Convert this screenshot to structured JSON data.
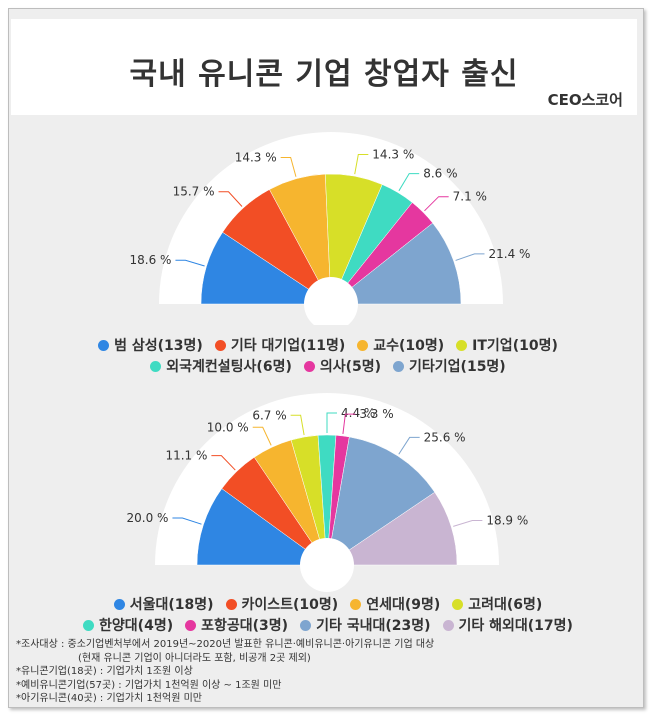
{
  "header": {
    "title": "국내 유니콘 기업 창업자 출신",
    "brand": "CEO스코어"
  },
  "chart_data": [
    {
      "type": "pie",
      "variant": "half-donut",
      "categories": [
        "범 삼성",
        "기타 대기업",
        "교수",
        "IT기업",
        "외국계컨설팅사",
        "의사",
        "기타기업"
      ],
      "values": [
        18.6,
        15.7,
        14.3,
        14.3,
        8.6,
        7.1,
        21.4
      ],
      "value_labels": [
        "18.6 %",
        "15.7 %",
        "14.3 %",
        "14.3 %",
        "8.6 %",
        "7.1 %",
        "21.4 %"
      ],
      "colors": [
        "#2f86e3",
        "#f24e25",
        "#f6b52f",
        "#d7df28",
        "#3fdbc2",
        "#e5379f",
        "#7ea5cf"
      ],
      "legend_rows": [
        [
          "범 삼성(13명)",
          "기타 대기업(11명)",
          "교수(10명)",
          "IT기업(10명)"
        ],
        [
          "외국계컨설팅사(6명)",
          "의사(5명)",
          "기타기업(15명)"
        ]
      ],
      "legend_placement": "bottom"
    },
    {
      "type": "pie",
      "variant": "half-donut",
      "categories": [
        "서울대",
        "카이스트",
        "연세대",
        "고려대",
        "한양대",
        "포항공대",
        "기타 국내대",
        "기타 해외대"
      ],
      "values": [
        20.0,
        11.1,
        10.0,
        6.7,
        4.4,
        3.3,
        25.6,
        18.9
      ],
      "value_labels": [
        "20.0 %",
        "11.1 %",
        "10.0 %",
        "6.7 %",
        "4.4 %",
        "3.3 %",
        "25.6 %",
        "18.9 %"
      ],
      "colors": [
        "#2f86e3",
        "#f24e25",
        "#f6b52f",
        "#d7df28",
        "#3fdbc2",
        "#e5379f",
        "#7ea5cf",
        "#c9b5d2"
      ],
      "legend_rows": [
        [
          "서울대(18명)",
          "카이스트(10명)",
          "연세대(9명)",
          "고려대(6명)"
        ],
        [
          "한양대(4명)",
          "포항공대(3명)",
          "기타 국내대(23명)",
          "기타 해외대(17명)"
        ]
      ],
      "legend_placement": "bottom"
    }
  ],
  "notes": [
    "*조사대상 : 중소기업벤처부에서 2019년~2020년 발표한 유니콘·예비유니콘·아기유니콘 기업 대상",
    "(현재 유니콘 기업이 아니더라도 포함, 비공개 2곳 제외)",
    "*유니콘기업(18곳) : 기업가치 1조원 이상",
    "*예비유니콘기업(57곳) : 기업가치 1천억원 이상 ~ 1조원 미만",
    "*아기유니콘(40곳) : 기업가치 1천억원 미만"
  ]
}
